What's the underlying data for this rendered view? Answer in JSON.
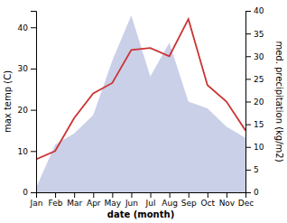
{
  "chart_data": {
    "type": "line",
    "xlabel": "date (month)",
    "ylabel": "max temp (C)",
    "y2label": "med. precipitation (kg/m2)",
    "categories": [
      "Jan",
      "Feb",
      "Mar",
      "Apr",
      "May",
      "Jun",
      "Jul",
      "Aug",
      "Sep",
      "Oct",
      "Nov",
      "Dec"
    ],
    "series": [
      {
        "type": "area",
        "axis": "y2",
        "color": "#b8c0e0",
        "values": [
          1.0,
          10.5,
          13.0,
          17.0,
          29.0,
          39.0,
          25.5,
          33.0,
          20.0,
          18.5,
          14.5,
          12.0
        ]
      },
      {
        "type": "line",
        "color": "#cc3333",
        "values": [
          8.0,
          10.0,
          18.0,
          24.0,
          26.5,
          34.5,
          35.0,
          33.0,
          42.0,
          26.0,
          22.0,
          15.0
        ]
      }
    ],
    "ylim": [
      0,
      44
    ],
    "yticks": [
      0,
      10,
      20,
      30,
      40
    ],
    "y2lim": [
      0,
      40
    ],
    "y2ticks": [
      0,
      5,
      10,
      15,
      20,
      25,
      30,
      35,
      40
    ],
    "grid": false
  }
}
